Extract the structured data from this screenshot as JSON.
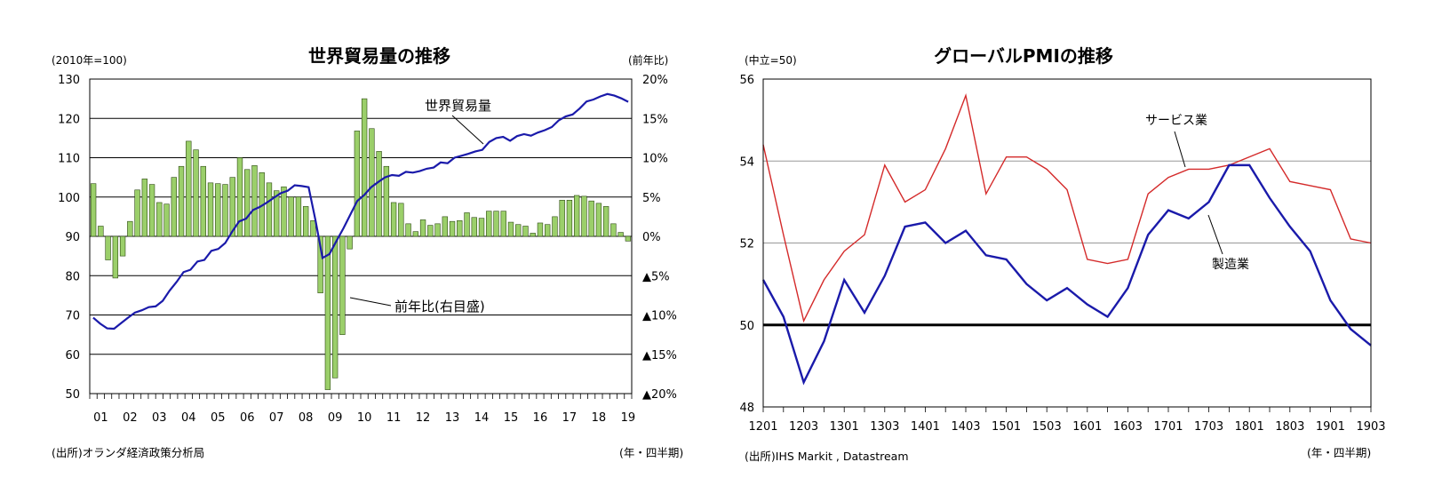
{
  "chart_data": [
    {
      "type": "bar+line",
      "title": "世界貿易量の推移",
      "left_unit": "(2010年=100)",
      "right_unit": "(前年比)",
      "source": "(出所)オランダ経済政策分析局",
      "xlabel": "(年・四半期)",
      "left_ylim": [
        50,
        130
      ],
      "left_ticks": [
        "130",
        "120",
        "110",
        "100",
        "90",
        "80",
        "70",
        "60",
        "50"
      ],
      "right_ylim": [
        -20,
        20
      ],
      "right_ticks": [
        "20%",
        "15%",
        "10%",
        "5%",
        "0%",
        "▲5%",
        "▲10%",
        "▲15%",
        "▲20%"
      ],
      "x_ticks": [
        "01",
        "02",
        "03",
        "04",
        "05",
        "06",
        "07",
        "08",
        "09",
        "10",
        "11",
        "12",
        "13",
        "14",
        "15",
        "16",
        "17",
        "18",
        "19"
      ],
      "series": [
        {
          "name": "前年比(右目盛)",
          "kind": "bar",
          "axis": "right",
          "color": "#9bcf6a",
          "values": [
            6.7,
            1.3,
            -3,
            -5.3,
            -2.5,
            1.9,
            5.9,
            7.3,
            6.6,
            4.3,
            4.1,
            7.5,
            8.9,
            12.1,
            11.0,
            8.9,
            6.8,
            6.7,
            6.6,
            7.5,
            10.0,
            8.5,
            9.0,
            8.1,
            6.8,
            5.8,
            6.3,
            5.0,
            5.0,
            3.8,
            2.0,
            -7.2,
            -19.5,
            -18.0,
            -12.5,
            -1.6,
            13.4,
            17.5,
            13.7,
            10.8,
            8.9,
            4.3,
            4.2,
            1.6,
            0.6,
            2.1,
            1.4,
            1.6,
            2.5,
            1.9,
            2.0,
            3.0,
            2.4,
            2.3,
            3.2,
            3.2,
            3.2,
            1.8,
            1.5,
            1.3,
            0.4,
            1.7,
            1.5,
            2.5,
            4.6,
            4.6,
            5.2,
            5.1,
            4.5,
            4.2,
            3.8,
            1.6,
            0.5,
            -0.6
          ]
        },
        {
          "name": "世界貿易量",
          "kind": "line",
          "axis": "left",
          "color": "#1a1aaa",
          "values": [
            69.3,
            67.8,
            66.6,
            66.5,
            67.9,
            69.3,
            70.6,
            71.2,
            72.0,
            72.2,
            73.6,
            76.2,
            78.4,
            80.9,
            81.5,
            83.6,
            84.0,
            86.3,
            86.8,
            88.3,
            91.2,
            93.8,
            94.5,
            96.7,
            97.5,
            98.6,
            99.8,
            101.0,
            101.6,
            103.0,
            102.8,
            102.5,
            94.0,
            84.5,
            85.5,
            88.8,
            92.0,
            95.5,
            99.0,
            100.5,
            102.5,
            103.8,
            105.0,
            105.6,
            105.4,
            106.4,
            106.2,
            106.6,
            107.2,
            107.5,
            108.8,
            108.6,
            110.0,
            110.5,
            111.0,
            111.6,
            112.0,
            114.0,
            115.0,
            115.3,
            114.3,
            115.5,
            116.0,
            115.6,
            116.4,
            117.0,
            117.8,
            119.5,
            120.5,
            121.0,
            122.5,
            124.3,
            124.8,
            125.6,
            126.2,
            125.8,
            125.1,
            124.2
          ]
        }
      ],
      "annotations": [
        "世界貿易量",
        "前年比(右目盛)"
      ]
    },
    {
      "type": "line",
      "title": "グローバルPMIの推移",
      "left_unit": "(中立=50)",
      "source": "(出所)IHS Markit , Datastream",
      "xlabel": "(年・四半期)",
      "ylim": [
        48,
        56
      ],
      "y_ticks": [
        "56",
        "54",
        "52",
        "50",
        "48"
      ],
      "x": [
        "1201",
        "1202",
        "1203",
        "1204",
        "1301",
        "1302",
        "1303",
        "1304",
        "1401",
        "1402",
        "1403",
        "1404",
        "1501",
        "1502",
        "1503",
        "1504",
        "1601",
        "1602",
        "1603",
        "1604",
        "1701",
        "1702",
        "1703",
        "1704",
        "1801",
        "1802",
        "1803",
        "1804",
        "1901",
        "1902",
        "1903"
      ],
      "x_ticks": [
        "1201",
        "1203",
        "1301",
        "1303",
        "1401",
        "1403",
        "1501",
        "1503",
        "1601",
        "1603",
        "1701",
        "1703",
        "1801",
        "1803",
        "1901",
        "1903"
      ],
      "reference_line": 50,
      "series": [
        {
          "name": "サービス業",
          "color": "#d42a2a",
          "values": [
            54.4,
            52.2,
            50.1,
            51.1,
            51.8,
            52.2,
            53.9,
            53.0,
            53.3,
            54.3,
            55.6,
            53.2,
            54.1,
            54.1,
            53.8,
            53.3,
            51.6,
            51.5,
            51.6,
            53.2,
            53.6,
            53.8,
            53.8,
            53.9,
            54.1,
            54.3,
            53.5,
            53.4,
            53.3,
            52.1,
            52.0
          ]
        },
        {
          "name": "製造業",
          "color": "#1a1aaa",
          "values": [
            51.1,
            50.2,
            48.6,
            49.6,
            51.1,
            50.3,
            51.2,
            52.4,
            52.5,
            52.0,
            52.3,
            51.7,
            51.6,
            51.0,
            50.6,
            50.9,
            50.5,
            50.2,
            50.9,
            52.2,
            52.8,
            52.6,
            53.0,
            53.9,
            53.9,
            53.1,
            52.4,
            51.8,
            50.6,
            49.9,
            49.5
          ]
        }
      ],
      "annotations": [
        "サービス業",
        "製造業"
      ]
    }
  ]
}
